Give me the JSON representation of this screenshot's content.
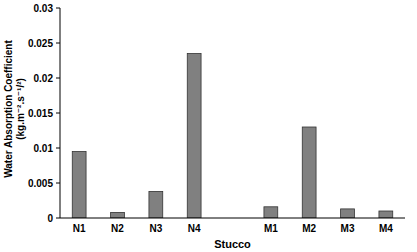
{
  "chart_data": {
    "type": "bar",
    "x_label": "Stucco",
    "y_label": [
      "Water Absorption Coefficient",
      "(kg.m⁻².s⁻¹/²)"
    ],
    "categories": [
      "N1",
      "N2",
      "N3",
      "N4",
      null,
      "M1",
      "M2",
      "M3",
      "M4"
    ],
    "values": [
      0.0095,
      0.0008,
      0.0038,
      0.0235,
      null,
      0.0016,
      0.013,
      0.0013,
      0.001
    ],
    "color": "#808080",
    "ylim": [
      0,
      0.03
    ],
    "yticks": [
      0,
      0.005,
      0.01,
      0.015,
      0.02,
      0.025,
      0.03
    ],
    "grid": false
  }
}
